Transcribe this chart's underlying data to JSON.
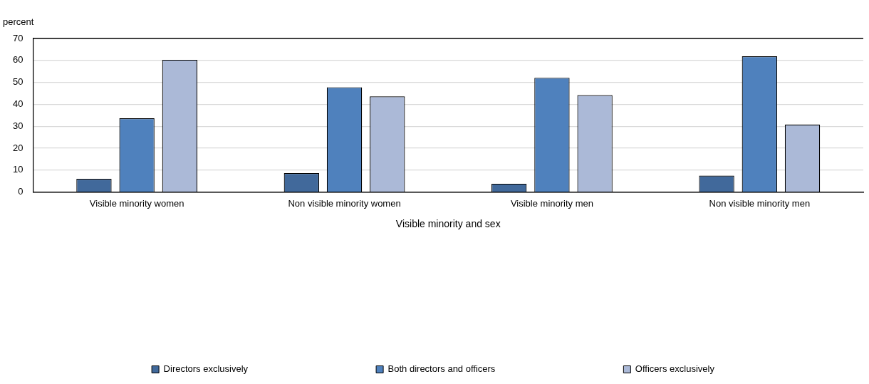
{
  "chart_data": {
    "type": "bar",
    "ylabel": "percent",
    "xlabel": "Visible minority and sex",
    "categories": [
      "Visible minority women",
      "Non visible minority women",
      "Visible minority men",
      "Non visible minority men"
    ],
    "series": [
      {
        "name": "Directors exclusively",
        "color": "#41699b",
        "values": [
          6.0,
          8.6,
          3.8,
          7.5
        ]
      },
      {
        "name": "Both directors and officers",
        "color": "#4f81bd",
        "values": [
          33.6,
          47.8,
          52.1,
          61.9
        ]
      },
      {
        "name": "Officers exclusively",
        "color": "#abb9d7",
        "values": [
          60.3,
          43.6,
          44.2,
          30.8
        ]
      }
    ],
    "ylim": [
      0,
      70
    ],
    "yticks": [
      0,
      10,
      20,
      30,
      40,
      50,
      60,
      70
    ],
    "grid": "y",
    "legend": "bottom"
  }
}
